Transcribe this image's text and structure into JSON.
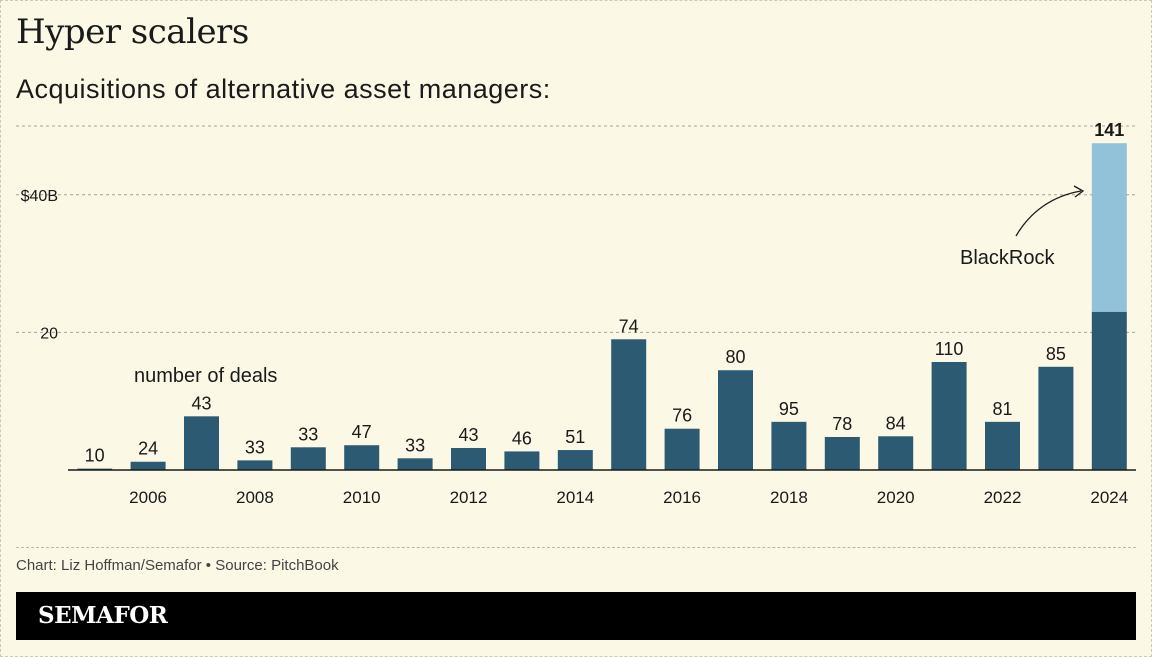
{
  "title": "Hyper scalers",
  "subtitle": "Acquisitions of alternative asset managers:",
  "credit": "Chart: Liz Hoffman/Semafor • Source: PitchBook",
  "logo": "SEMAFOR",
  "colors": {
    "background": "#fbf8e6",
    "bar": "#2c5a72",
    "blackrock": "#92c2da",
    "grid": "#a8a590",
    "axis": "#1a1a1a",
    "text": "#1a1a1a"
  },
  "chart_data": {
    "type": "bar",
    "categories": [
      "2005",
      "2006",
      "2007",
      "2008",
      "2009",
      "2010",
      "2011",
      "2012",
      "2013",
      "2014",
      "2015",
      "2016",
      "2017",
      "2018",
      "2019",
      "2020",
      "2021",
      "2022",
      "2023",
      "2024"
    ],
    "tick_labels": [
      "2006",
      "2008",
      "2010",
      "2012",
      "2014",
      "2016",
      "2018",
      "2020",
      "2022",
      "2024"
    ],
    "values": [
      0.2,
      1.2,
      7.8,
      1.4,
      3.3,
      3.6,
      1.7,
      3.2,
      2.7,
      2.9,
      19.0,
      6.0,
      14.5,
      7.0,
      4.8,
      4.9,
      15.7,
      7.0,
      15.0,
      23.0
    ],
    "stacked_top": {
      "category": "2024",
      "name": "BlackRock",
      "value": 24.5
    },
    "deal_counts": [
      "10",
      "24",
      "43",
      "33",
      "33",
      "47",
      "33",
      "43",
      "46",
      "51",
      "74",
      "76",
      "80",
      "95",
      "78",
      "84",
      "110",
      "81",
      "85",
      "141"
    ],
    "ylim": [
      0,
      50
    ],
    "yticks": [
      {
        "value": 20,
        "label": "20"
      },
      {
        "value": 40,
        "label": "$40B"
      },
      {
        "value": 50,
        "label": ""
      }
    ],
    "annotations": {
      "deals_label": "number of deals",
      "blackrock_label": "BlackRock"
    },
    "grid": true
  }
}
